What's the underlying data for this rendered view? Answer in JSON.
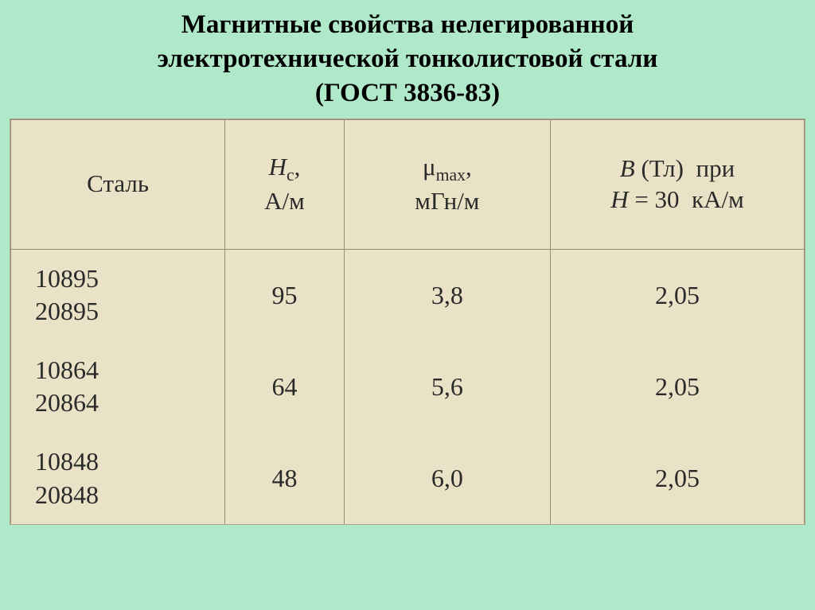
{
  "title": {
    "line1": "Магнитные свойства нелегированной",
    "line2": "электротехнической тонколистовой стали",
    "line3": "(ГОСТ 3836-83)",
    "fontsize": 33,
    "color": "#000000",
    "weight": "bold"
  },
  "background_color": "#b0e8ca",
  "table": {
    "background_color": "#eae2c6",
    "border_color": "#948c74",
    "text_color": "#2a2a2a",
    "header_fontsize": 31,
    "cell_fontsize": 32,
    "columns": [
      {
        "label_plain": "Сталь",
        "width_pct": 27,
        "align": "left"
      },
      {
        "label_plain": "Hc, А/м",
        "width_pct": 15,
        "align": "center",
        "label_line1_html": "<span class=\"ital\">H</span><span class=\"sub\">c</span>,",
        "label_line2": "А/м"
      },
      {
        "label_plain": "μmax, мГн/м",
        "width_pct": 26,
        "align": "center",
        "label_line1_html": "μ<span class=\"sub\">max</span>,",
        "label_line2": "мГн/м"
      },
      {
        "label_plain": "B (Тл) при H = 30 кА/м",
        "width_pct": 32,
        "align": "center",
        "label_line1_html": "<span class=\"ital\">B</span> (Тл)&nbsp; при",
        "label_line2_html": "<span class=\"ital\">H</span> = 30&nbsp; кА/м"
      }
    ],
    "rows": [
      {
        "steel_a": "10895",
        "steel_b": "20895",
        "hc": "95",
        "mu": "3,8",
        "b": "2,05"
      },
      {
        "steel_a": "10864",
        "steel_b": "20864",
        "hc": "64",
        "mu": "5,6",
        "b": "2,05"
      },
      {
        "steel_a": "10848",
        "steel_b": "20848",
        "hc": "48",
        "mu": "6,0",
        "b": "2,05"
      }
    ]
  }
}
